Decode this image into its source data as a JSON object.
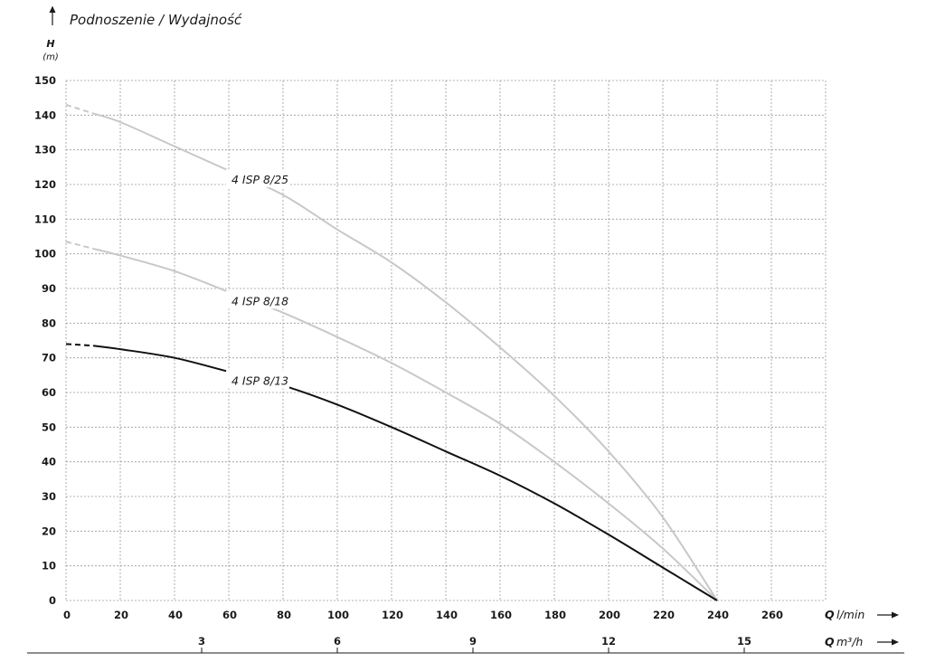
{
  "chart_data": {
    "type": "line",
    "title": "Podnoszenie / Wydajność",
    "ylabel": "H",
    "yunit": "(m)",
    "xlabel": "Q",
    "xunit": "l/min",
    "x2label": "Q",
    "x2unit": "m³/h",
    "xlim": [
      0,
      280
    ],
    "ylim": [
      0,
      150
    ],
    "grid": true,
    "x_ticks": [
      0,
      20,
      40,
      60,
      80,
      100,
      120,
      140,
      160,
      180,
      200,
      220,
      240,
      260
    ],
    "y_ticks": [
      0,
      10,
      20,
      30,
      40,
      50,
      60,
      70,
      80,
      90,
      100,
      110,
      120,
      130,
      140,
      150
    ],
    "x2_ticks": [
      3,
      6,
      9,
      12,
      15
    ],
    "series": [
      {
        "name": "4 ISP 8/25",
        "color": "#c8c8c8",
        "label_at": [
          61,
          121
        ],
        "x": [
          0,
          10,
          20,
          40,
          60,
          80,
          100,
          120,
          140,
          160,
          180,
          200,
          220,
          240
        ],
        "y": [
          143,
          140.5,
          138,
          131,
          124,
          117,
          107,
          97.5,
          86,
          73,
          59,
          43,
          24,
          0
        ]
      },
      {
        "name": "4 ISP 8/18",
        "color": "#c8c8c8",
        "label_at": [
          61,
          86
        ],
        "x": [
          0,
          10,
          20,
          40,
          60,
          80,
          100,
          120,
          140,
          160,
          180,
          200,
          220,
          240
        ],
        "y": [
          103.5,
          101.5,
          99.5,
          95,
          89,
          83,
          76,
          68.5,
          60,
          51,
          40,
          28,
          15,
          0
        ]
      },
      {
        "name": "4 ISP 8/13",
        "color": "#111111",
        "label_at": [
          61,
          63
        ],
        "x": [
          0,
          10,
          20,
          40,
          60,
          80,
          100,
          120,
          140,
          160,
          180,
          200,
          220,
          240
        ],
        "y": [
          74,
          73.5,
          72.5,
          70,
          66,
          62,
          56.5,
          50,
          43,
          36,
          28,
          19,
          9.5,
          0
        ]
      }
    ]
  }
}
